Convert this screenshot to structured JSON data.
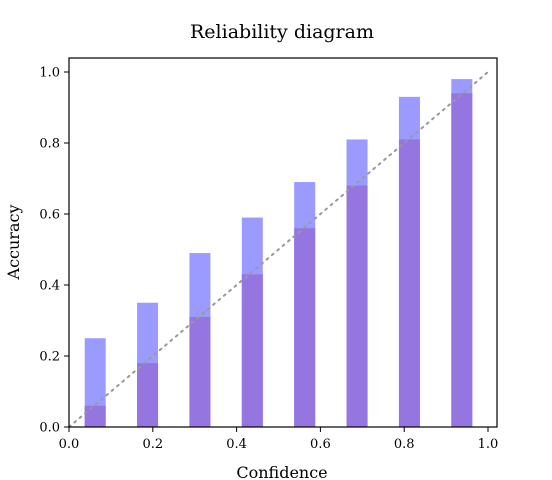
{
  "chart_data": {
    "type": "bar",
    "title": "Reliability diagram",
    "xlabel": "Confidence",
    "ylabel": "Accuracy",
    "xlim": [
      0.0,
      1.0
    ],
    "ylim": [
      0.0,
      1.0
    ],
    "xticks": [
      "0.0",
      "0.2",
      "0.4",
      "0.6",
      "0.8",
      "1.0"
    ],
    "yticks": [
      "0.0",
      "0.2",
      "0.4",
      "0.6",
      "0.8",
      "1.0"
    ],
    "grid": false,
    "reference_line": "diagonal dotted",
    "bin_centers": [
      0.0625,
      0.1875,
      0.3125,
      0.4375,
      0.5625,
      0.6875,
      0.8125,
      0.9375
    ],
    "series": [
      {
        "values": [
          0.25,
          0.35,
          0.49,
          0.59,
          0.69,
          0.81,
          0.93,
          0.98
        ],
        "color": "#9b9bff"
      },
      {
        "values": [
          0.06,
          0.18,
          0.31,
          0.43,
          0.56,
          0.68,
          0.81,
          0.94
        ],
        "color": "#9575e0"
      }
    ]
  }
}
